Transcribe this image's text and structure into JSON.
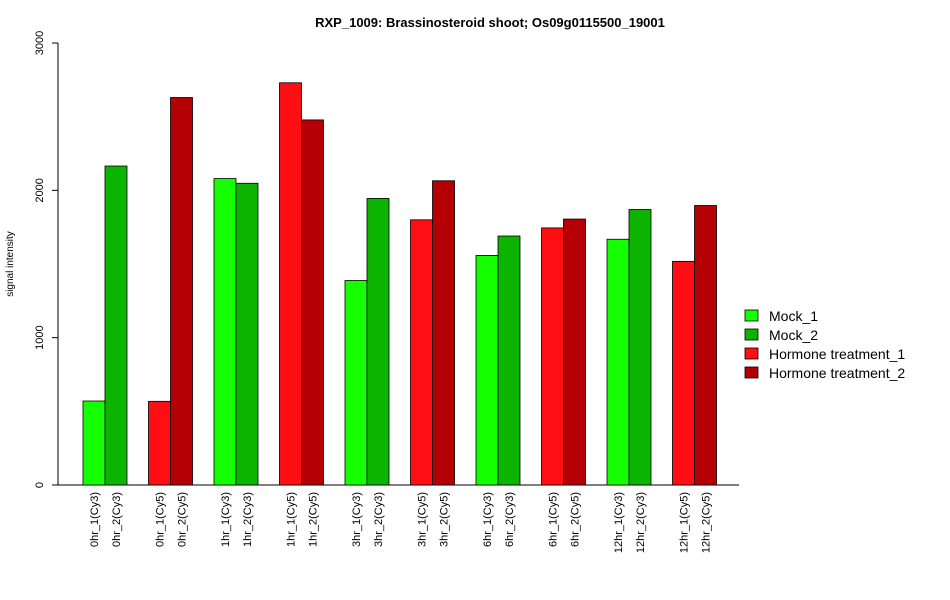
{
  "chart_data": {
    "type": "bar",
    "title": "RXP_1009: Brassinosteroid shoot; Os09g0115500_19001",
    "ylabel": "signal intensity",
    "xlabel": "",
    "ylim": [
      0,
      3000
    ],
    "yticks": [
      0,
      1000,
      2000,
      3000
    ],
    "grid": false,
    "legend_position": "right",
    "legend": [
      {
        "name": "Mock_1",
        "color": "#14ff00"
      },
      {
        "name": "Mock_2",
        "color": "#0cb400"
      },
      {
        "name": "Hormone treatment_1",
        "color": "#ff0f14"
      },
      {
        "name": "Hormone treatment_2",
        "color": "#b40005"
      }
    ],
    "bars": [
      {
        "label": "0hr_1(Cy3)",
        "value": 570,
        "color": "#14ff00"
      },
      {
        "label": "0hr_2(Cy3)",
        "value": 2165,
        "color": "#0cb400"
      },
      {
        "label": "0hr_1(Cy5)",
        "value": 568,
        "color": "#ff0f14"
      },
      {
        "label": "0hr_2(Cy5)",
        "value": 2630,
        "color": "#b40005"
      },
      {
        "label": "1hr_1(Cy3)",
        "value": 2080,
        "color": "#14ff00"
      },
      {
        "label": "1hr_2(Cy3)",
        "value": 2048,
        "color": "#0cb400"
      },
      {
        "label": "1hr_1(Cy5)",
        "value": 2730,
        "color": "#ff0f14"
      },
      {
        "label": "1hr_2(Cy5)",
        "value": 2478,
        "color": "#b40005"
      },
      {
        "label": "3hr_1(Cy3)",
        "value": 1388,
        "color": "#14ff00"
      },
      {
        "label": "3hr_2(Cy3)",
        "value": 1945,
        "color": "#0cb400"
      },
      {
        "label": "3hr_1(Cy5)",
        "value": 1800,
        "color": "#ff0f14"
      },
      {
        "label": "3hr_2(Cy5)",
        "value": 2065,
        "color": "#b40005"
      },
      {
        "label": "6hr_1(Cy3)",
        "value": 1558,
        "color": "#14ff00"
      },
      {
        "label": "6hr_2(Cy3)",
        "value": 1690,
        "color": "#0cb400"
      },
      {
        "label": "6hr_1(Cy5)",
        "value": 1745,
        "color": "#ff0f14"
      },
      {
        "label": "6hr_2(Cy5)",
        "value": 1805,
        "color": "#b40005"
      },
      {
        "label": "12hr_1(Cy3)",
        "value": 1668,
        "color": "#14ff00"
      },
      {
        "label": "12hr_2(Cy3)",
        "value": 1870,
        "color": "#0cb400"
      },
      {
        "label": "12hr_1(Cy5)",
        "value": 1518,
        "color": "#ff0f14"
      },
      {
        "label": "12hr_2(Cy5)",
        "value": 1897,
        "color": "#b40005"
      }
    ]
  }
}
